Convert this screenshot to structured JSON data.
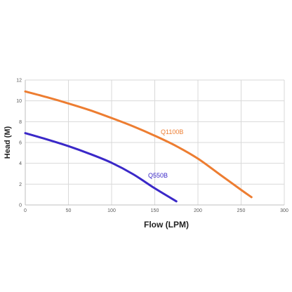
{
  "chart_data": {
    "type": "line",
    "title": "",
    "xlabel": "Flow (LPM)",
    "ylabel": "Head (M)",
    "xlim": [
      0,
      300
    ],
    "ylim": [
      0,
      12
    ],
    "x_ticks": [
      0,
      50,
      100,
      150,
      200,
      250,
      300
    ],
    "y_ticks": [
      0,
      2,
      4,
      6,
      8,
      10,
      12
    ],
    "grid": true,
    "legend": "none",
    "series": [
      {
        "name": "Q1100B",
        "color": "#ed7d31",
        "x": [
          0,
          25,
          50,
          75,
          100,
          125,
          150,
          175,
          200,
          225,
          250,
          262
        ],
        "y": [
          10.9,
          10.35,
          9.75,
          9.1,
          8.35,
          7.55,
          6.65,
          5.65,
          4.45,
          2.95,
          1.45,
          0.75
        ]
      },
      {
        "name": "Q550B",
        "color": "#3a28c8",
        "x": [
          0,
          25,
          50,
          75,
          100,
          125,
          150,
          175
        ],
        "y": [
          6.9,
          6.3,
          5.65,
          4.9,
          4.05,
          2.95,
          1.6,
          0.35
        ]
      }
    ]
  }
}
